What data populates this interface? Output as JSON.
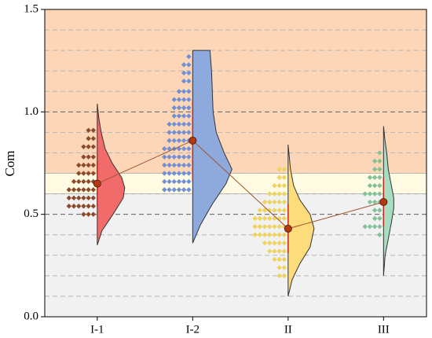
{
  "chart_data": {
    "type": "half-violin",
    "y_label": "Com",
    "ylim": [
      0,
      1.5
    ],
    "yticks": [
      {
        "value": 0,
        "label": "0.0"
      },
      {
        "value": 0.5,
        "label": "0.5"
      },
      {
        "value": 1.0,
        "label": "1.0"
      },
      {
        "value": 1.5,
        "label": "1.5"
      }
    ],
    "grid_lines": [
      0.1,
      0.2,
      0.3,
      0.4,
      0.5,
      0.6,
      0.7,
      0.8,
      0.9,
      1.0,
      1.1,
      1.2,
      1.3,
      1.4
    ],
    "bands": [
      {
        "from": 0.7,
        "to": 1.5,
        "color": "#fcd6b6"
      },
      {
        "from": 0.6,
        "to": 0.7,
        "color": "#fffbe3"
      },
      {
        "from": 0,
        "to": 0.6,
        "color": "#f1f1f1"
      }
    ],
    "mean_line_color": "#a0522d",
    "categories": [
      "I-1",
      "I-2",
      "II",
      "III"
    ],
    "groups": [
      {
        "color": "#f26b6b",
        "dot_color": "#8b4a2b",
        "mean": 0.65,
        "error": 0.11,
        "violin_y": [
          0.35,
          0.42,
          0.5,
          0.58,
          0.63,
          0.68,
          0.75,
          0.82,
          0.9,
          0.97,
          1.04
        ],
        "violin_density": [
          0,
          0.12,
          0.4,
          0.66,
          0.7,
          0.62,
          0.38,
          0.2,
          0.1,
          0.04,
          0
        ],
        "dots": [
          {
            "y": 0.91,
            "count": 2
          },
          {
            "y": 0.87,
            "count": 2
          },
          {
            "y": 0.83,
            "count": 3
          },
          {
            "y": 0.78,
            "count": 3
          },
          {
            "y": 0.74,
            "count": 4
          },
          {
            "y": 0.7,
            "count": 4
          },
          {
            "y": 0.66,
            "count": 5
          },
          {
            "y": 0.62,
            "count": 6
          },
          {
            "y": 0.58,
            "count": 6
          },
          {
            "y": 0.54,
            "count": 6
          },
          {
            "y": 0.5,
            "count": 3
          }
        ]
      },
      {
        "color": "#8eaadd",
        "dot_color": "#6f8fd6",
        "mean": 0.86,
        "error": 0.2,
        "violin_y": [
          0.36,
          0.45,
          0.55,
          0.65,
          0.72,
          0.8,
          0.9,
          1.0,
          1.1,
          1.2,
          1.3
        ],
        "violin_density": [
          0,
          0.2,
          0.5,
          0.85,
          1.0,
          0.8,
          0.6,
          0.52,
          0.5,
          0.48,
          0.44
        ],
        "dots": [
          {
            "y": 1.27,
            "count": 1
          },
          {
            "y": 1.23,
            "count": 2
          },
          {
            "y": 1.19,
            "count": 2
          },
          {
            "y": 1.15,
            "count": 2
          },
          {
            "y": 1.1,
            "count": 3
          },
          {
            "y": 1.06,
            "count": 4
          },
          {
            "y": 1.02,
            "count": 4
          },
          {
            "y": 0.98,
            "count": 4
          },
          {
            "y": 0.94,
            "count": 5
          },
          {
            "y": 0.9,
            "count": 5
          },
          {
            "y": 0.86,
            "count": 5
          },
          {
            "y": 0.82,
            "count": 6
          },
          {
            "y": 0.78,
            "count": 6
          },
          {
            "y": 0.74,
            "count": 6
          },
          {
            "y": 0.7,
            "count": 6
          },
          {
            "y": 0.66,
            "count": 6
          },
          {
            "y": 0.62,
            "count": 6
          }
        ]
      },
      {
        "color": "#fddc7c",
        "dot_color": "#f0d35a",
        "mean": 0.43,
        "error": 0.12,
        "violin_y": [
          0.1,
          0.18,
          0.26,
          0.34,
          0.43,
          0.5,
          0.57,
          0.64,
          0.72,
          0.78,
          0.84
        ],
        "violin_density": [
          0,
          0.1,
          0.3,
          0.56,
          0.66,
          0.56,
          0.3,
          0.14,
          0.06,
          0.03,
          0
        ],
        "dots": [
          {
            "y": 0.72,
            "count": 2
          },
          {
            "y": 0.68,
            "count": 2
          },
          {
            "y": 0.64,
            "count": 3
          },
          {
            "y": 0.6,
            "count": 4
          },
          {
            "y": 0.56,
            "count": 5
          },
          {
            "y": 0.52,
            "count": 6
          },
          {
            "y": 0.48,
            "count": 7
          },
          {
            "y": 0.44,
            "count": 7
          },
          {
            "y": 0.4,
            "count": 7
          },
          {
            "y": 0.36,
            "count": 5
          },
          {
            "y": 0.32,
            "count": 4
          },
          {
            "y": 0.28,
            "count": 3
          },
          {
            "y": 0.24,
            "count": 2
          },
          {
            "y": 0.2,
            "count": 2
          }
        ]
      },
      {
        "color": "#a9ddc2",
        "dot_color": "#82c298",
        "mean": 0.56,
        "error": 0.12,
        "violin_y": [
          0.2,
          0.3,
          0.38,
          0.46,
          0.53,
          0.58,
          0.64,
          0.72,
          0.8,
          0.87,
          0.93
        ],
        "violin_density": [
          0,
          0.04,
          0.12,
          0.2,
          0.26,
          0.26,
          0.2,
          0.12,
          0.08,
          0.03,
          0
        ],
        "dots": [
          {
            "y": 0.8,
            "count": 1
          },
          {
            "y": 0.76,
            "count": 2
          },
          {
            "y": 0.72,
            "count": 2
          },
          {
            "y": 0.68,
            "count": 3
          },
          {
            "y": 0.64,
            "count": 3
          },
          {
            "y": 0.6,
            "count": 4
          },
          {
            "y": 0.56,
            "count": 3
          },
          {
            "y": 0.52,
            "count": 2
          },
          {
            "y": 0.48,
            "count": 2
          },
          {
            "y": 0.44,
            "count": 4
          },
          {
            "y": 0.4,
            "count": 1
          }
        ]
      }
    ]
  }
}
